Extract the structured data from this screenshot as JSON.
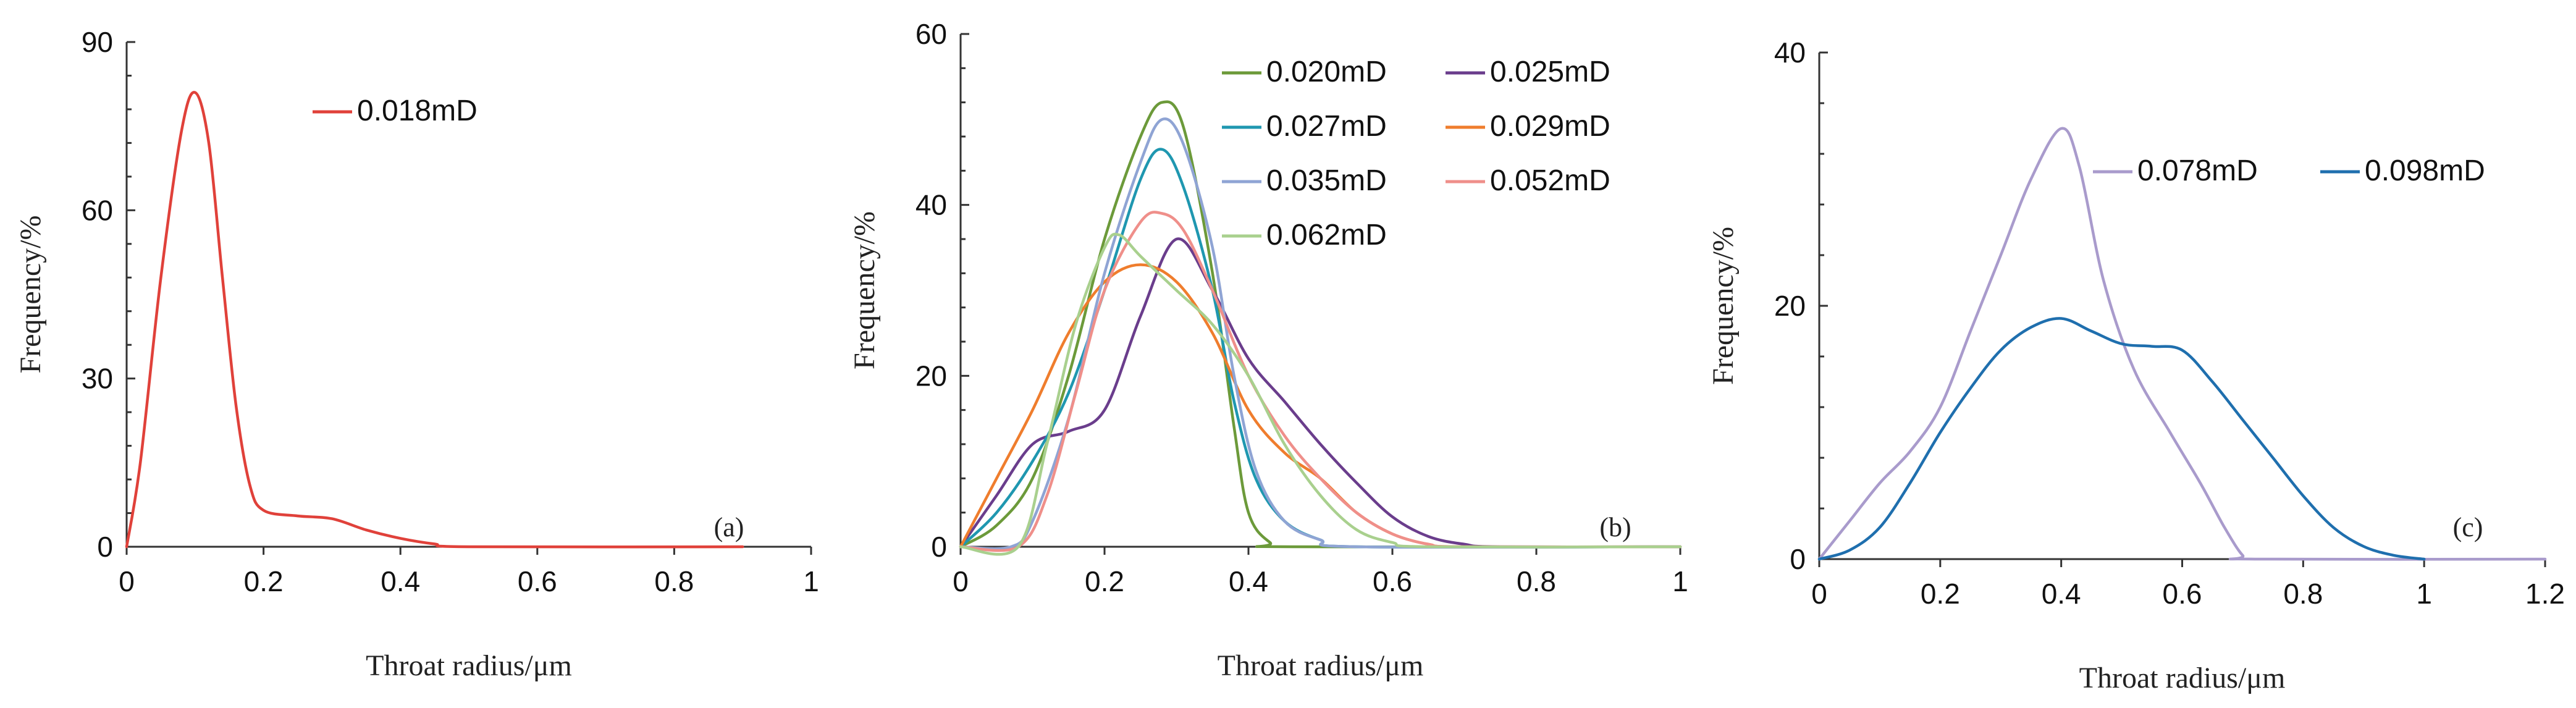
{
  "chart_data": [
    {
      "type": "line",
      "panel_label": "(a)",
      "xlabel": "Throat radius/μm",
      "ylabel": "Frequency/%",
      "xlim": [
        0,
        1
      ],
      "ylim": [
        0,
        90
      ],
      "xticks": [
        "0",
        "0.2",
        "0.4",
        "0.6",
        "0.8",
        "1"
      ],
      "yticks": [
        "0",
        "30",
        "60",
        "90"
      ],
      "legend_position": "top-center",
      "series": [
        {
          "name": "0.018mD",
          "color": "#e0413a",
          "points": [
            [
              0,
              0
            ],
            [
              0.02,
              15
            ],
            [
              0.05,
              48
            ],
            [
              0.08,
              74
            ],
            [
              0.1,
              81
            ],
            [
              0.12,
              72
            ],
            [
              0.14,
              48
            ],
            [
              0.16,
              25
            ],
            [
              0.18,
              11
            ],
            [
              0.2,
              6.5
            ],
            [
              0.25,
              5.5
            ],
            [
              0.3,
              5
            ],
            [
              0.35,
              3
            ],
            [
              0.4,
              1.5
            ],
            [
              0.45,
              0.5
            ],
            [
              0.5,
              0
            ],
            [
              0.9,
              0
            ]
          ]
        }
      ]
    },
    {
      "type": "line",
      "panel_label": "(b)",
      "xlabel": "Throat radius/μm",
      "ylabel": "Frequency/%",
      "xlim": [
        0,
        1
      ],
      "ylim": [
        0,
        60
      ],
      "xticks": [
        "0",
        "0.2",
        "0.4",
        "0.6",
        "0.8",
        "1"
      ],
      "yticks": [
        "0",
        "20",
        "40",
        "60"
      ],
      "legend_position": "top-right",
      "series": [
        {
          "name": "0.020mD",
          "color": "#6c9a3a",
          "points": [
            [
              0,
              0
            ],
            [
              0.05,
              2.5
            ],
            [
              0.1,
              8
            ],
            [
              0.15,
              20
            ],
            [
              0.2,
              36
            ],
            [
              0.25,
              48
            ],
            [
              0.28,
              52
            ],
            [
              0.31,
              49
            ],
            [
              0.35,
              32
            ],
            [
              0.38,
              14
            ],
            [
              0.4,
              4
            ],
            [
              0.43,
              0.5
            ],
            [
              0.46,
              0
            ],
            [
              1,
              0
            ]
          ]
        },
        {
          "name": "0.025mD",
          "color": "#6a3d8c",
          "points": [
            [
              0,
              0
            ],
            [
              0.05,
              6
            ],
            [
              0.1,
              12
            ],
            [
              0.15,
              13.5
            ],
            [
              0.2,
              16
            ],
            [
              0.25,
              27
            ],
            [
              0.3,
              36
            ],
            [
              0.35,
              30
            ],
            [
              0.4,
              22
            ],
            [
              0.45,
              17
            ],
            [
              0.5,
              12
            ],
            [
              0.55,
              7.5
            ],
            [
              0.6,
              3.5
            ],
            [
              0.65,
              1.2
            ],
            [
              0.7,
              0.3
            ],
            [
              0.75,
              0
            ],
            [
              1,
              0
            ]
          ]
        },
        {
          "name": "0.027mD",
          "color": "#1f97b0",
          "points": [
            [
              0,
              0
            ],
            [
              0.05,
              4
            ],
            [
              0.1,
              10
            ],
            [
              0.15,
              18
            ],
            [
              0.2,
              30
            ],
            [
              0.25,
              43
            ],
            [
              0.28,
              46.5
            ],
            [
              0.31,
              42
            ],
            [
              0.35,
              30
            ],
            [
              0.38,
              17
            ],
            [
              0.41,
              8
            ],
            [
              0.45,
              3
            ],
            [
              0.5,
              0.8
            ],
            [
              0.55,
              0
            ],
            [
              1,
              0
            ]
          ]
        },
        {
          "name": "0.029mD",
          "color": "#ef7d2d",
          "points": [
            [
              0,
              0
            ],
            [
              0.05,
              8
            ],
            [
              0.1,
              16
            ],
            [
              0.15,
              25
            ],
            [
              0.2,
              31
            ],
            [
              0.25,
              33
            ],
            [
              0.3,
              31
            ],
            [
              0.35,
              25
            ],
            [
              0.4,
              16
            ],
            [
              0.45,
              11
            ],
            [
              0.5,
              8
            ],
            [
              0.55,
              4
            ],
            [
              0.6,
              1.5
            ],
            [
              0.65,
              0.3
            ],
            [
              0.7,
              0
            ],
            [
              1,
              0
            ]
          ]
        },
        {
          "name": "0.035mD",
          "color": "#8fa4d4",
          "points": [
            [
              0,
              0
            ],
            [
              0.07,
              0
            ],
            [
              0.1,
              3
            ],
            [
              0.15,
              15
            ],
            [
              0.2,
              32
            ],
            [
              0.25,
              45
            ],
            [
              0.28,
              50
            ],
            [
              0.31,
              47
            ],
            [
              0.35,
              35
            ],
            [
              0.38,
              20
            ],
            [
              0.41,
              9
            ],
            [
              0.45,
              3
            ],
            [
              0.5,
              0.8
            ],
            [
              0.55,
              0
            ],
            [
              1,
              0
            ]
          ]
        },
        {
          "name": "0.052mD",
          "color": "#ef8f8a",
          "points": [
            [
              0,
              0
            ],
            [
              0.08,
              0
            ],
            [
              0.12,
              6
            ],
            [
              0.16,
              18
            ],
            [
              0.2,
              30
            ],
            [
              0.25,
              38
            ],
            [
              0.28,
              39
            ],
            [
              0.31,
              37
            ],
            [
              0.35,
              30
            ],
            [
              0.4,
              20
            ],
            [
              0.45,
              13
            ],
            [
              0.5,
              8
            ],
            [
              0.55,
              4
            ],
            [
              0.6,
              1.5
            ],
            [
              0.65,
              0.3
            ],
            [
              0.7,
              0
            ],
            [
              1,
              0
            ]
          ]
        },
        {
          "name": "0.062mD",
          "color": "#a9d08e",
          "points": [
            [
              0,
              0
            ],
            [
              0.08,
              0
            ],
            [
              0.12,
              12
            ],
            [
              0.16,
              26
            ],
            [
              0.2,
              35
            ],
            [
              0.22,
              36.5
            ],
            [
              0.25,
              34
            ],
            [
              0.3,
              30
            ],
            [
              0.35,
              26
            ],
            [
              0.4,
              20
            ],
            [
              0.45,
              12
            ],
            [
              0.5,
              6
            ],
            [
              0.55,
              2
            ],
            [
              0.6,
              0.5
            ],
            [
              0.65,
              0
            ],
            [
              1,
              0
            ]
          ]
        }
      ]
    },
    {
      "type": "line",
      "panel_label": "(c)",
      "xlabel": "Throat radius/μm",
      "ylabel": "Frequency/%",
      "xlim": [
        0,
        1.2
      ],
      "ylim": [
        0,
        40
      ],
      "xticks": [
        "0",
        "0.2",
        "0.4",
        "0.6",
        "0.8",
        "1",
        "1.2"
      ],
      "yticks": [
        "0",
        "20",
        "40"
      ],
      "legend_position": "top-right",
      "series": [
        {
          "name": "0.078mD",
          "color": "#a99bcc",
          "points": [
            [
              0,
              0
            ],
            [
              0.05,
              3
            ],
            [
              0.1,
              6
            ],
            [
              0.15,
              8.5
            ],
            [
              0.2,
              12
            ],
            [
              0.25,
              18
            ],
            [
              0.3,
              24
            ],
            [
              0.35,
              30
            ],
            [
              0.4,
              34
            ],
            [
              0.43,
              31
            ],
            [
              0.47,
              22
            ],
            [
              0.52,
              15
            ],
            [
              0.58,
              10
            ],
            [
              0.63,
              6
            ],
            [
              0.67,
              2.5
            ],
            [
              0.7,
              0.3
            ],
            [
              0.72,
              0
            ],
            [
              1.2,
              0
            ]
          ]
        },
        {
          "name": "0.098mD",
          "color": "#1f6fae",
          "points": [
            [
              0,
              0
            ],
            [
              0.05,
              0.7
            ],
            [
              0.1,
              2.5
            ],
            [
              0.15,
              6
            ],
            [
              0.2,
              10
            ],
            [
              0.25,
              13.5
            ],
            [
              0.3,
              16.5
            ],
            [
              0.35,
              18.3
            ],
            [
              0.4,
              19
            ],
            [
              0.45,
              18
            ],
            [
              0.5,
              17
            ],
            [
              0.55,
              16.8
            ],
            [
              0.6,
              16.5
            ],
            [
              0.65,
              14
            ],
            [
              0.7,
              11
            ],
            [
              0.75,
              8
            ],
            [
              0.8,
              5
            ],
            [
              0.85,
              2.5
            ],
            [
              0.9,
              1
            ],
            [
              0.95,
              0.3
            ],
            [
              1,
              0
            ]
          ]
        }
      ]
    }
  ]
}
